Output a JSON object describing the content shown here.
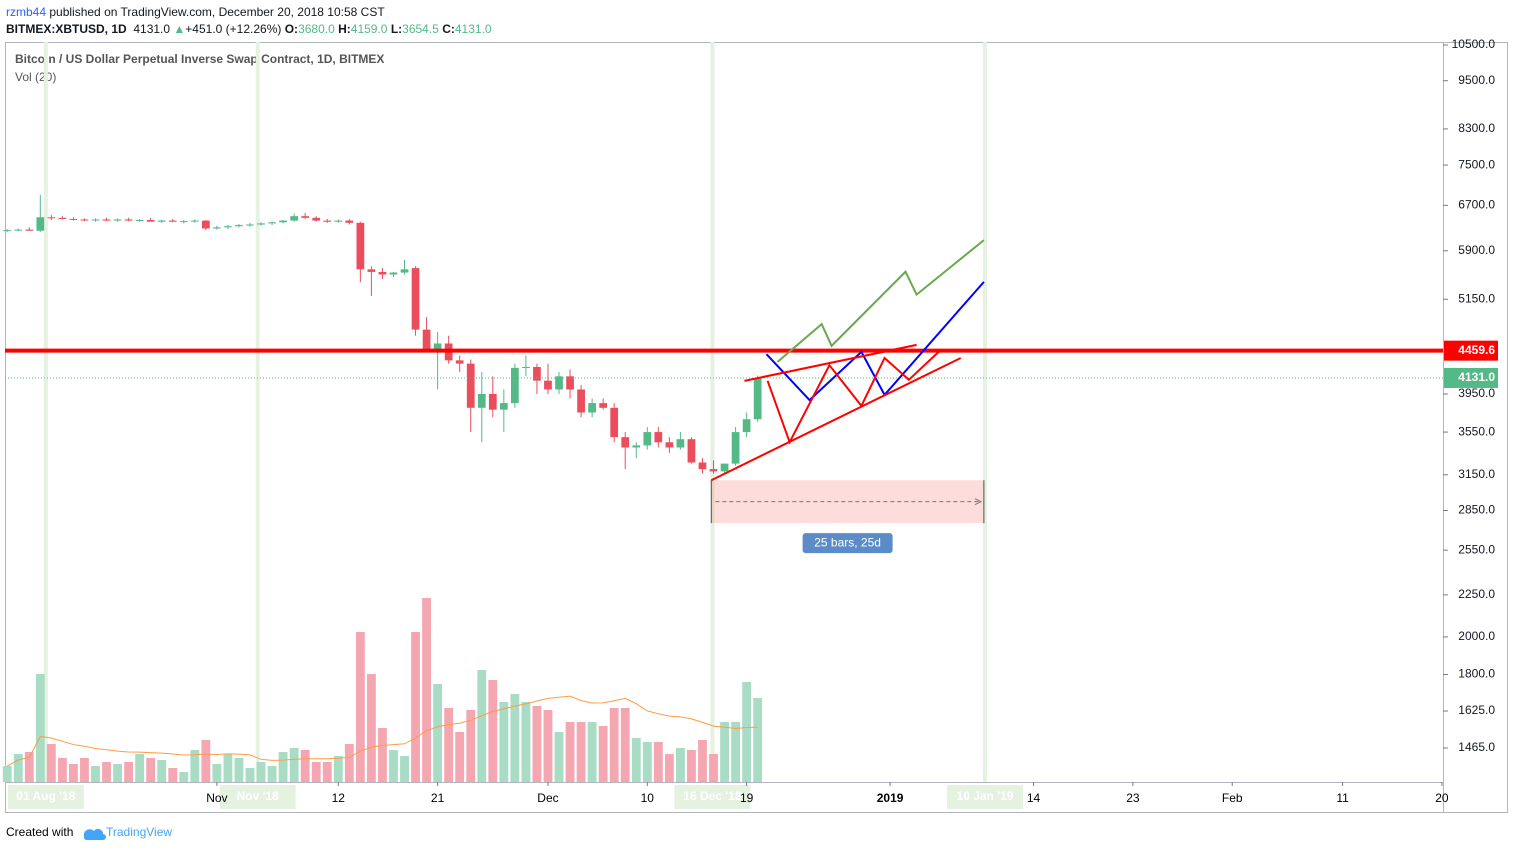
{
  "header": {
    "user": "rzmb44",
    "published": "published on TradingView.com, December 20, 2018 10:58 CST",
    "symbol": "BITMEX:XBTUSD, 1D",
    "last": "4131.0",
    "arrow": "▲",
    "change": "+451.0 (+12.26%)",
    "o_label": "O:",
    "open": "3680.0",
    "h_label": "H:",
    "high": "4159.0",
    "l_label": "L:",
    "low": "3654.5",
    "c_label": "C:",
    "close": "4131.0"
  },
  "footer": {
    "created": "Created with",
    "brand": "TradingView"
  },
  "chart_data": {
    "type": "candlestick",
    "title": "Bitcoin / US Dollar Perpetual Inverse Swap Contract, 1D, BITMEX",
    "volume_title": "Vol (20)",
    "log_scale": true,
    "up_color": "#53b987",
    "down_color": "#eb4d5c",
    "up_volume_color": "#a8dcc4",
    "down_volume_color": "#f4a7b1",
    "volume_ma_color": "#ff9b45",
    "xlim": [
      -0.2,
      130.1
    ],
    "ylim": [
      1332,
      10588
    ],
    "vlim": [
      0,
      100
    ],
    "open": [
      6240,
      6250,
      6260,
      6240,
      6480,
      6470,
      6450,
      6440,
      6430,
      6440,
      6420,
      6440,
      6420,
      6430,
      6400,
      6420,
      6400,
      6410,
      6420,
      6280,
      6300,
      6320,
      6340,
      6350,
      6370,
      6390,
      6420,
      6500,
      6470,
      6420,
      6400,
      6420,
      6380,
      5600,
      5560,
      5520,
      5550,
      5620,
      4730,
      4450,
      4550,
      4340,
      4300,
      3800,
      3950,
      3780,
      3850,
      4250,
      4260,
      4100,
      4000,
      4150,
      4000,
      3750,
      3850,
      3800,
      3500,
      3400,
      3420,
      3550,
      3450,
      3400,
      3480,
      3260,
      3200,
      3180,
      3250,
      3550,
      3680
    ],
    "high": [
      6270,
      6280,
      6300,
      6900,
      6520,
      6500,
      6480,
      6460,
      6460,
      6470,
      6460,
      6470,
      6450,
      6470,
      6440,
      6450,
      6430,
      6440,
      6430,
      6330,
      6340,
      6360,
      6380,
      6390,
      6400,
      6430,
      6550,
      6560,
      6500,
      6450,
      6440,
      6450,
      6400,
      5650,
      5620,
      5560,
      5750,
      5650,
      4900,
      4700,
      4650,
      4400,
      4350,
      4200,
      4150,
      4000,
      4300,
      4400,
      4300,
      4300,
      4200,
      4230,
      4050,
      3900,
      3900,
      3850,
      3550,
      3450,
      3600,
      3600,
      3500,
      3550,
      3500,
      3300,
      3280,
      3250,
      3600,
      3750,
      4159
    ],
    "low": [
      6220,
      6230,
      6240,
      6220,
      6430,
      6440,
      6420,
      6410,
      6400,
      6410,
      6400,
      6410,
      6400,
      6410,
      6380,
      6390,
      6370,
      6380,
      6250,
      6260,
      6270,
      6300,
      6310,
      6330,
      6340,
      6370,
      6400,
      6450,
      6400,
      6380,
      6380,
      6350,
      5400,
      5200,
      5450,
      5480,
      5520,
      4650,
      4450,
      4000,
      4300,
      4200,
      3550,
      3450,
      3700,
      3550,
      3800,
      4150,
      3950,
      3950,
      3950,
      3900,
      3700,
      3700,
      3780,
      3450,
      3200,
      3300,
      3380,
      3400,
      3350,
      3380,
      3250,
      3160,
      3160,
      3160,
      3230,
      3500,
      3654.5
    ],
    "close": [
      6250,
      6260,
      6240,
      6480,
      6470,
      6450,
      6440,
      6430,
      6440,
      6420,
      6440,
      6420,
      6430,
      6400,
      6420,
      6400,
      6410,
      6420,
      6280,
      6300,
      6320,
      6340,
      6350,
      6370,
      6390,
      6420,
      6500,
      6470,
      6420,
      6400,
      6420,
      6380,
      5600,
      5560,
      5520,
      5550,
      5600,
      4730,
      4450,
      4550,
      4340,
      4300,
      3800,
      3950,
      3780,
      3850,
      4250,
      4260,
      4100,
      4000,
      4150,
      4000,
      3750,
      3850,
      3800,
      3500,
      3400,
      3420,
      3550,
      3450,
      3400,
      3480,
      3260,
      3200,
      3180,
      3250,
      3550,
      3680,
      4131
    ],
    "volume": [
      8,
      14,
      15,
      54,
      19,
      12,
      9,
      12,
      8,
      10,
      9,
      10,
      14,
      12,
      11,
      7,
      5,
      16,
      21,
      9,
      14,
      12,
      7,
      10,
      8,
      15,
      17,
      16,
      10,
      10,
      13,
      19,
      75,
      54,
      27,
      16,
      13,
      75,
      92,
      49,
      37,
      25,
      36,
      56,
      51,
      40,
      44,
      40,
      38,
      36,
      25,
      30,
      30,
      30,
      28,
      37,
      37,
      22,
      20,
      20,
      14,
      17,
      16,
      21,
      14,
      30,
      30,
      50,
      42
    ],
    "xticks": [
      {
        "value": 19,
        "label": "Nov"
      },
      {
        "value": 30,
        "label": "12"
      },
      {
        "value": 39,
        "label": "21"
      },
      {
        "value": 49,
        "label": "Dec"
      },
      {
        "value": 58,
        "label": "10"
      },
      {
        "value": 67,
        "label": "19"
      },
      {
        "value": 80,
        "label": "2019"
      },
      {
        "value": 93,
        "label": "14"
      },
      {
        "value": 102,
        "label": "23"
      },
      {
        "value": 111,
        "label": "Feb"
      },
      {
        "value": 121,
        "label": "11"
      },
      {
        "value": 130,
        "label": "20"
      }
    ],
    "yticks": [
      {
        "value": 10500,
        "label": "10500.0"
      },
      {
        "value": 9500,
        "label": "9500.0"
      },
      {
        "value": 8300,
        "label": "8300.0"
      },
      {
        "value": 7500,
        "label": "7500.0"
      },
      {
        "value": 6700,
        "label": "6700.0"
      },
      {
        "value": 5900,
        "label": "5900.0"
      },
      {
        "value": 5150,
        "label": "5150.0"
      },
      {
        "value": 3950,
        "label": "3950.0"
      },
      {
        "value": 3550,
        "label": "3550.0"
      },
      {
        "value": 3150,
        "label": "3150.0"
      },
      {
        "value": 2850,
        "label": "2850.0"
      },
      {
        "value": 2550,
        "label": "2550.0"
      },
      {
        "value": 2250,
        "label": "2250.0"
      },
      {
        "value": 2000,
        "label": "2000.0"
      },
      {
        "value": 1800,
        "label": "1800.0"
      },
      {
        "value": 1625,
        "label": "1625.0"
      },
      {
        "value": 1465,
        "label": "1465.0"
      }
    ],
    "highlights": [
      {
        "x": 3.5,
        "label": "01 Aug '18"
      },
      {
        "x": 22.7,
        "label": "Nov '18"
      },
      {
        "x": 63.9,
        "label": "16 Dec '18"
      },
      {
        "x": 88.6,
        "label": "10 Jan '19"
      }
    ],
    "price_lines": [
      {
        "value": 4459.6,
        "label": "4459.6",
        "color": "#ff0000",
        "style": "solid"
      },
      {
        "value": 4131,
        "label": "4131.0",
        "color": "#53b987",
        "style": "dotted"
      }
    ],
    "drawings": [
      {
        "color": "#6aa84f",
        "points": [
          [
            69.8,
            4322
          ],
          [
            73.8,
            4804
          ],
          [
            74.7,
            4520
          ],
          [
            81.4,
            5563
          ],
          [
            82.4,
            5218
          ],
          [
            88.5,
            6078
          ]
        ]
      },
      {
        "color": "#0000ff",
        "points": [
          [
            68.8,
            4416
          ],
          [
            72.7,
            3883
          ],
          [
            77.4,
            4444
          ],
          [
            79.5,
            3940
          ],
          [
            88.5,
            5407
          ]
        ]
      },
      {
        "color": "#ff0000",
        "points": [
          [
            68.9,
            4098
          ],
          [
            70.9,
            3451
          ],
          [
            74.5,
            4282
          ],
          [
            77.4,
            3820
          ],
          [
            79.5,
            4369
          ],
          [
            81.7,
            4110
          ],
          [
            84.4,
            4444
          ]
        ]
      },
      {
        "color": "#ff0000",
        "points": [
          [
            66.8,
            4098
          ],
          [
            82.4,
            4532
          ]
        ]
      },
      {
        "color": "#ff0000",
        "points": [
          [
            63.8,
            3102
          ],
          [
            86.4,
            4369
          ]
        ]
      }
    ],
    "range_box": {
      "from": [
        63.8,
        3102
      ],
      "to": [
        88.5,
        2751
      ],
      "label": "25 bars, 25d"
    }
  }
}
